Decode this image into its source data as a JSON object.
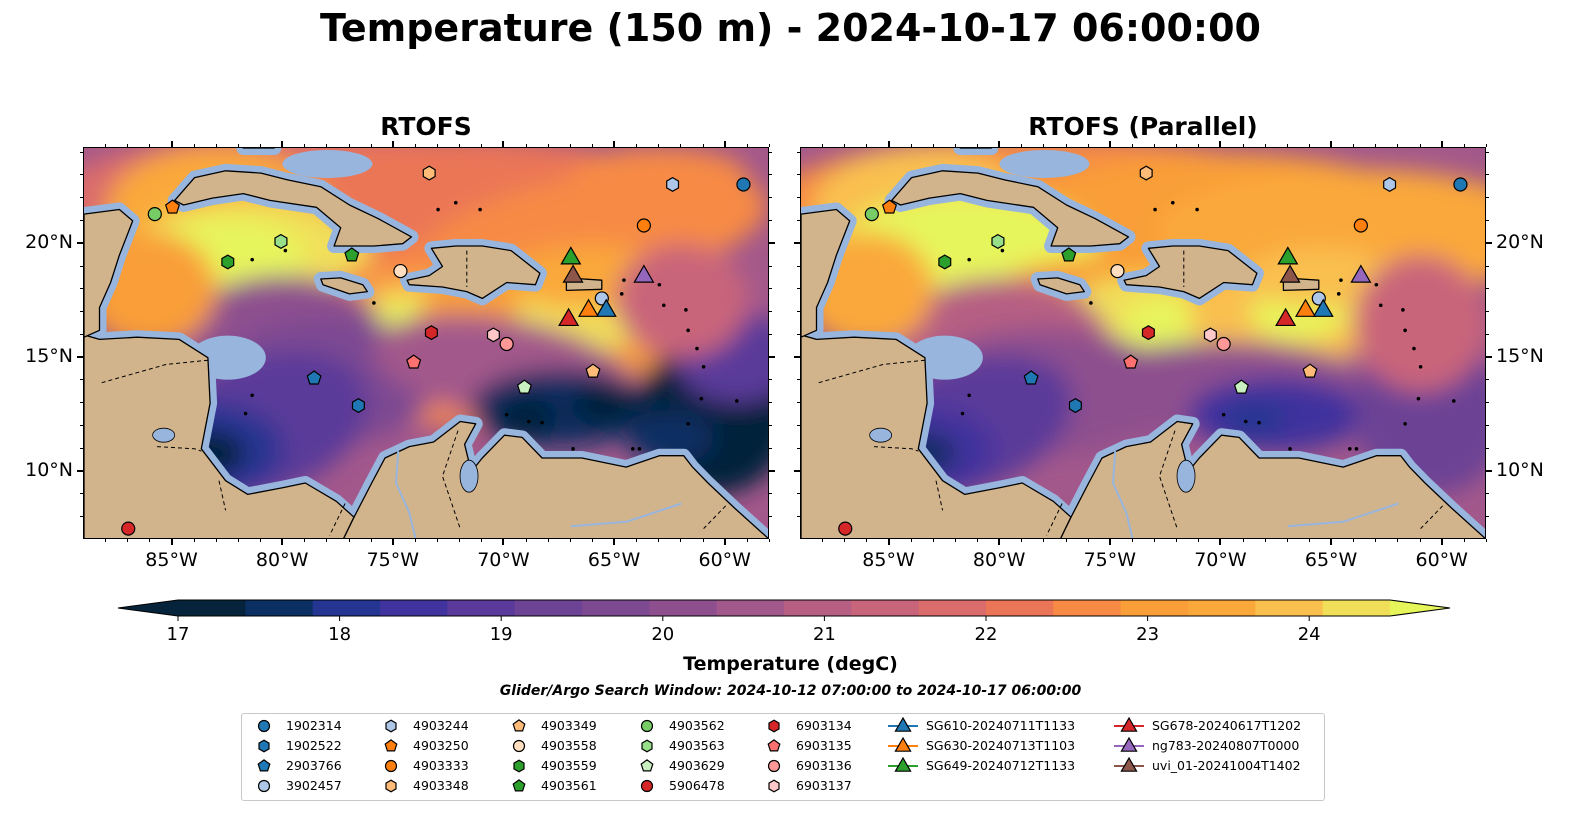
{
  "title": "Temperature (150 m) - 2024-10-17 06:00:00",
  "panels": [
    {
      "title": "RTOFS"
    },
    {
      "title": "RTOFS (Parallel)"
    }
  ],
  "map": {
    "lon_range": [
      -89.0,
      -58.0
    ],
    "lat_range": [
      7.0,
      24.2
    ],
    "lon_ticks": [
      -85,
      -80,
      -75,
      -70,
      -65,
      -60
    ],
    "lon_tick_labels": [
      "85°W",
      "80°W",
      "75°W",
      "70°W",
      "65°W",
      "60°W"
    ],
    "lat_ticks": [
      10,
      15,
      20
    ],
    "lat_tick_labels": [
      "10°N",
      "15°N",
      "20°N"
    ],
    "land_color": "#d2b48c",
    "shelf_color": "#98b5de",
    "deep_color": "#05233a"
  },
  "colorbar": {
    "label": "Temperature (degC)",
    "range": [
      17,
      24.5
    ],
    "ticks": [
      17,
      18,
      19,
      20,
      21,
      22,
      23,
      24
    ],
    "tick_labels": [
      "17",
      "18",
      "19",
      "20",
      "21",
      "22",
      "23",
      "24"
    ],
    "colors": [
      "#05233a",
      "#0b2f62",
      "#253592",
      "#40339e",
      "#5a3a9a",
      "#6c4395",
      "#7d4a92",
      "#8e4f8e",
      "#a3588b",
      "#b65f83",
      "#c9657a",
      "#da6c6c",
      "#eb7657",
      "#f78b45",
      "#f99e39",
      "#faa83a",
      "#f9c04f",
      "#f1df5a",
      "#e7f55b"
    ],
    "under_color": "#05233a",
    "over_color": "#e6f55a"
  },
  "search_window": "Glider/Argo Search Window: 2024-10-12 07:00:00 to 2024-10-17 06:00:00",
  "legend": [
    {
      "label": "1902314",
      "marker": "circle",
      "color": "#1f77b4"
    },
    {
      "label": "1902522",
      "marker": "hexagon",
      "color": "#1f77b4"
    },
    {
      "label": "2903766",
      "marker": "pentagon",
      "color": "#1f77b4"
    },
    {
      "label": "3902457",
      "marker": "circle",
      "color": "#aec7e8"
    },
    {
      "label": "4903244",
      "marker": "hexagon",
      "color": "#aec7e8"
    },
    {
      "label": "4903250",
      "marker": "pentagon",
      "color": "#ff7f0e"
    },
    {
      "label": "4903333",
      "marker": "circle",
      "color": "#ff7f0e"
    },
    {
      "label": "4903348",
      "marker": "hexagon",
      "color": "#ffbb78"
    },
    {
      "label": "4903349",
      "marker": "pentagon",
      "color": "#ffbb78"
    },
    {
      "label": "4903558",
      "marker": "circle",
      "color": "#ffdfc0"
    },
    {
      "label": "4903559",
      "marker": "hexagon",
      "color": "#2ca02c"
    },
    {
      "label": "4903561",
      "marker": "pentagon",
      "color": "#2ca02c"
    },
    {
      "label": "4903562",
      "marker": "circle",
      "color": "#77cc66"
    },
    {
      "label": "4903563",
      "marker": "hexagon",
      "color": "#98df8a"
    },
    {
      "label": "4903629",
      "marker": "pentagon",
      "color": "#c8f0c0"
    },
    {
      "label": "5906478",
      "marker": "circle",
      "color": "#d62728"
    },
    {
      "label": "6903134",
      "marker": "hexagon",
      "color": "#d62728"
    },
    {
      "label": "6903135",
      "marker": "pentagon",
      "color": "#ff7070"
    },
    {
      "label": "6903136",
      "marker": "circle",
      "color": "#ff9896"
    },
    {
      "label": "6903137",
      "marker": "hexagon",
      "color": "#ffc8c8"
    },
    {
      "label": "SG610-20240711T1133",
      "marker": "triangle",
      "color": "#1f77b4"
    },
    {
      "label": "SG630-20240713T1103",
      "marker": "triangle",
      "color": "#ff7f0e"
    },
    {
      "label": "SG649-20240712T1133",
      "marker": "triangle",
      "color": "#2ca02c"
    },
    {
      "label": "SG678-20240617T1202",
      "marker": "triangle",
      "color": "#d62728"
    },
    {
      "label": "ng783-20240807T0000",
      "marker": "triangle",
      "color": "#9467bd"
    },
    {
      "label": "uvi_01-20241004T1402",
      "marker": "triangle",
      "color": "#8c564b"
    }
  ],
  "observations": [
    {
      "id": "1902314",
      "lon": -59.2,
      "lat": 22.6
    },
    {
      "id": "1902522",
      "lon": -76.6,
      "lat": 12.9
    },
    {
      "id": "2903766",
      "lon": -78.6,
      "lat": 14.1
    },
    {
      "id": "3902457",
      "lon": -65.6,
      "lat": 17.6
    },
    {
      "id": "4903244",
      "lon": -62.4,
      "lat": 22.6
    },
    {
      "id": "4903250",
      "lon": -85.0,
      "lat": 21.6
    },
    {
      "id": "4903333",
      "lon": -63.7,
      "lat": 20.8
    },
    {
      "id": "4903348",
      "lon": -73.4,
      "lat": 23.1
    },
    {
      "id": "4903349",
      "lon": -66.0,
      "lat": 14.4
    },
    {
      "id": "4903558",
      "lon": -74.7,
      "lat": 18.8
    },
    {
      "id": "4903559",
      "lon": -82.5,
      "lat": 19.2
    },
    {
      "id": "4903561",
      "lon": -76.9,
      "lat": 19.5
    },
    {
      "id": "4903562",
      "lon": -85.8,
      "lat": 21.3
    },
    {
      "id": "4903563",
      "lon": -80.1,
      "lat": 20.1
    },
    {
      "id": "4903629",
      "lon": -69.1,
      "lat": 13.7
    },
    {
      "id": "5906478",
      "lon": -87.0,
      "lat": 7.5
    },
    {
      "id": "6903134",
      "lon": -73.3,
      "lat": 16.1
    },
    {
      "id": "6903135",
      "lon": -74.1,
      "lat": 14.8
    },
    {
      "id": "6903136",
      "lon": -69.9,
      "lat": 15.6
    },
    {
      "id": "6903137",
      "lon": -70.5,
      "lat": 16.0
    },
    {
      "id": "SG610-20240711T1133",
      "lon": -65.4,
      "lat": 17.1
    },
    {
      "id": "SG630-20240713T1103",
      "lon": -66.2,
      "lat": 17.1
    },
    {
      "id": "SG649-20240712T1133",
      "lon": -67.0,
      "lat": 19.4
    },
    {
      "id": "SG678-20240617T1202",
      "lon": -67.1,
      "lat": 16.7
    },
    {
      "id": "ng783-20240807T0000",
      "lon": -63.7,
      "lat": 18.6
    },
    {
      "id": "uvi_01-20241004T1402",
      "lon": -66.9,
      "lat": 18.6
    }
  ]
}
